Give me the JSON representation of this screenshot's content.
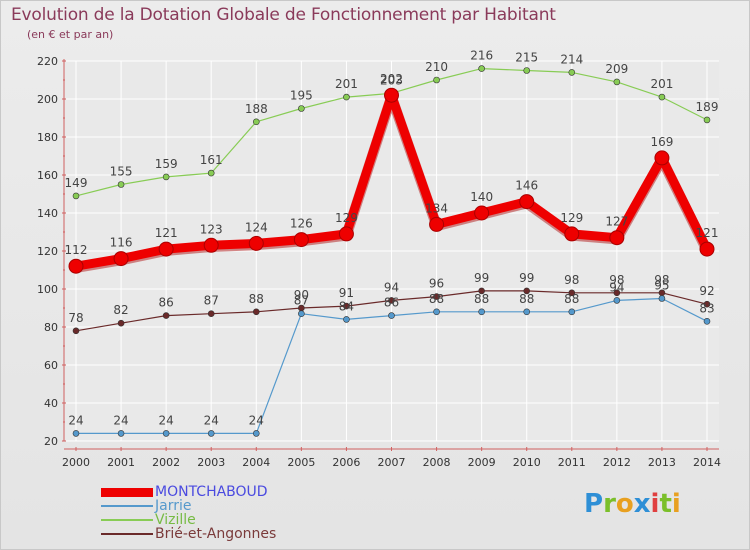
{
  "header": {
    "title": "Evolution de la Dotation Globale de Fonctionnement par Habitant",
    "subtitle": "(en € et par an)"
  },
  "brand": {
    "name": "Proxiti",
    "letters": [
      {
        "ch": "P",
        "color": "#2e8fd6"
      },
      {
        "ch": "r",
        "color": "#7bbf2a"
      },
      {
        "ch": "o",
        "color": "#e8a020"
      },
      {
        "ch": "x",
        "color": "#2e8fd6"
      },
      {
        "ch": "i",
        "color": "#e04040"
      },
      {
        "ch": "t",
        "color": "#7bbf2a"
      },
      {
        "ch": "i",
        "color": "#e8a020"
      }
    ]
  },
  "colors": {
    "title": "#8a3a5a",
    "axis": "#d06060",
    "grid": "#ffffff"
  },
  "chart_data": {
    "type": "line",
    "title": "Evolution de la Dotation Globale de Fonctionnement par Habitant",
    "subtitle": "(en € et par an)",
    "xlabel": "",
    "ylabel": "",
    "ylim": [
      20,
      220
    ],
    "yticks": [
      20,
      40,
      60,
      80,
      100,
      120,
      140,
      160,
      180,
      200,
      220
    ],
    "x": [
      "2000",
      "2001",
      "2002",
      "2003",
      "2004",
      "2005",
      "2006",
      "2007",
      "2008",
      "2009",
      "2010",
      "2011",
      "2012",
      "2013",
      "2014"
    ],
    "grid": true,
    "legend_position": "bottom-left",
    "series": [
      {
        "name": "MONTCHABOUD",
        "color": "#ee0000",
        "legend_text_color": "#4a4ae0",
        "width": 9,
        "marker": 7,
        "values": [
          112,
          116,
          121,
          123,
          124,
          126,
          129,
          202,
          134,
          140,
          146,
          129,
          127,
          169,
          121
        ]
      },
      {
        "name": "Jarrie",
        "color": "#5599cc",
        "legend_text_color": "#5599cc",
        "width": 1.2,
        "marker": 3,
        "values": [
          24,
          24,
          24,
          24,
          24,
          87,
          84,
          86,
          88,
          88,
          88,
          88,
          94,
          95,
          83
        ]
      },
      {
        "name": "Vizille",
        "color": "#88cc55",
        "legend_text_color": "#77bb44",
        "width": 1.2,
        "marker": 3,
        "values": [
          149,
          155,
          159,
          161,
          188,
          195,
          201,
          203,
          210,
          216,
          215,
          214,
          209,
          201,
          189
        ]
      },
      {
        "name": "Brié-et-Angonnes",
        "color": "#6a2a2a",
        "legend_text_color": "#7a3a3a",
        "width": 1.2,
        "marker": 3,
        "values": [
          78,
          82,
          86,
          87,
          88,
          90,
          91,
          94,
          96,
          99,
          99,
          98,
          98,
          98,
          92
        ]
      }
    ]
  }
}
